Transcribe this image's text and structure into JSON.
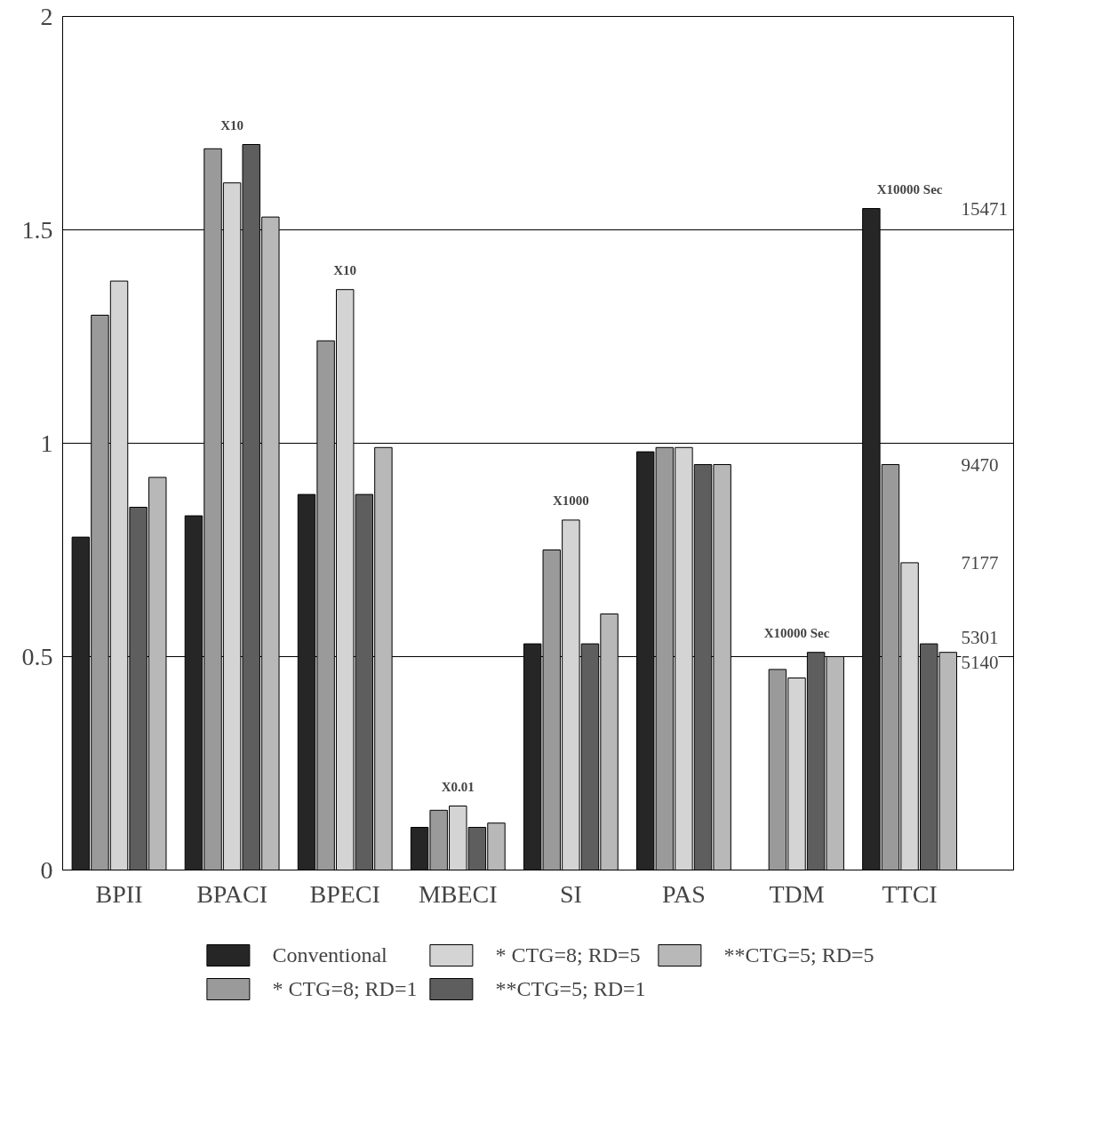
{
  "chart_data": {
    "type": "bar",
    "categories": [
      "BPII",
      "BPACI",
      "BPECI",
      "MBECI",
      "SI",
      "PAS",
      "TDM",
      "TTCI"
    ],
    "series": [
      {
        "name": "Conventional",
        "color": "#262626",
        "values": [
          0.78,
          0.83,
          0.88,
          0.1,
          0.53,
          0.98,
          null,
          1.55
        ]
      },
      {
        "name": "* CTG=8; RD=1",
        "color": "#9a9a9a",
        "values": [
          1.3,
          1.69,
          1.24,
          0.14,
          0.75,
          0.99,
          0.47,
          0.95
        ]
      },
      {
        "name": "* CTG=8; RD=5",
        "color": "#d4d4d4",
        "values": [
          1.38,
          1.61,
          1.36,
          0.15,
          0.82,
          0.99,
          0.45,
          0.72
        ]
      },
      {
        "name": "**CTG=5; RD=1",
        "color": "#5e5e5e",
        "values": [
          0.85,
          1.7,
          0.88,
          0.1,
          0.53,
          0.95,
          0.51,
          0.53
        ]
      },
      {
        "name": "**CTG=5; RD=5",
        "color": "#b8b8b8",
        "values": [
          0.92,
          1.53,
          0.99,
          0.11,
          0.6,
          0.95,
          0.5,
          0.51
        ]
      }
    ],
    "ylim": [
      0,
      2
    ],
    "yticks": [
      0,
      0.5,
      1,
      1.5,
      2
    ],
    "grid": "y",
    "legend": "bottom",
    "annotations": [
      "X10",
      "X10",
      "X0.01",
      "X1000",
      "X10000 Sec",
      "X10000 Sec",
      "15471",
      "9470",
      "7177",
      "5301",
      "5140"
    ]
  }
}
